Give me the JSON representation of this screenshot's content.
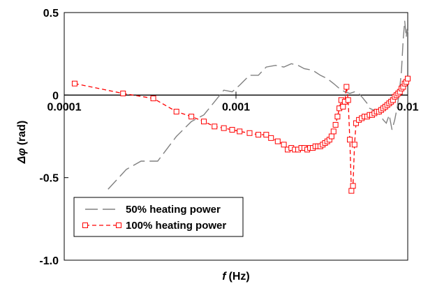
{
  "chart_data": {
    "type": "line",
    "title": "",
    "xlabel_var": "f",
    "xlabel_unit": "(Hz)",
    "ylabel_var": "Δφ",
    "ylabel_unit": "(rad)",
    "x_scale": "log",
    "xlim": [
      0.0001,
      0.01
    ],
    "ylim": [
      -1.0,
      0.5
    ],
    "x_ticks": [
      {
        "value": 0.0001,
        "label": "0.0001"
      },
      {
        "value": 0.001,
        "label": "0.001"
      },
      {
        "value": 0.01,
        "label": "0.01"
      }
    ],
    "y_ticks": [
      {
        "value": 0.5,
        "label": "0.5"
      },
      {
        "value": 0,
        "label": "0"
      },
      {
        "value": -0.5,
        "label": "-0.5"
      },
      {
        "value": -1.0,
        "label": "-1.0"
      }
    ],
    "grid": false,
    "legend_position": "bottom-left",
    "series": [
      {
        "name": "50% heating power",
        "color": "#808080",
        "line_style": "long-dash",
        "marker": "none",
        "points": [
          [
            0.00018,
            -0.57
          ],
          [
            0.00023,
            -0.45
          ],
          [
            0.00028,
            -0.4
          ],
          [
            0.00035,
            -0.4
          ],
          [
            0.00045,
            -0.25
          ],
          [
            0.00055,
            -0.16
          ],
          [
            0.00065,
            -0.12
          ],
          [
            0.00075,
            -0.04
          ],
          [
            0.00085,
            0.03
          ],
          [
            0.00095,
            0.02
          ],
          [
            0.00105,
            0.06
          ],
          [
            0.0012,
            0.12
          ],
          [
            0.00135,
            0.12
          ],
          [
            0.0015,
            0.17
          ],
          [
            0.0017,
            0.18
          ],
          [
            0.0019,
            0.17
          ],
          [
            0.0021,
            0.19
          ],
          [
            0.0023,
            0.18
          ],
          [
            0.0025,
            0.16
          ],
          [
            0.0028,
            0.15
          ],
          [
            0.0031,
            0.12
          ],
          [
            0.0034,
            0.1
          ],
          [
            0.0037,
            0.07
          ],
          [
            0.004,
            0.04
          ],
          [
            0.0043,
            0.02
          ],
          [
            0.0046,
            0.01
          ],
          [
            0.0049,
            0.02
          ],
          [
            0.0052,
            0.01
          ],
          [
            0.0055,
            -0.02
          ],
          [
            0.0058,
            -0.05
          ],
          [
            0.006,
            -0.08
          ],
          [
            0.0063,
            -0.09
          ],
          [
            0.0066,
            -0.1
          ],
          [
            0.0069,
            -0.12
          ],
          [
            0.0072,
            -0.15
          ],
          [
            0.0075,
            -0.17
          ],
          [
            0.0078,
            -0.12
          ],
          [
            0.0081,
            -0.21
          ],
          [
            0.0084,
            -0.15
          ],
          [
            0.0087,
            -0.07
          ],
          [
            0.009,
            0.05
          ],
          [
            0.0092,
            0.15
          ],
          [
            0.0094,
            0.33
          ],
          [
            0.0096,
            0.45
          ],
          [
            0.0098,
            0.35
          ],
          [
            0.0099,
            0.4
          ],
          [
            0.01,
            0.38
          ]
        ]
      },
      {
        "name": "100% heating power",
        "color": "#ff0000",
        "line_style": "dashed",
        "marker": "open-square",
        "points": [
          [
            0.000115,
            0.07
          ],
          [
            0.00022,
            0.01
          ],
          [
            0.00033,
            -0.02
          ],
          [
            0.00045,
            -0.1
          ],
          [
            0.00055,
            -0.13
          ],
          [
            0.00065,
            -0.16
          ],
          [
            0.00075,
            -0.19
          ],
          [
            0.00085,
            -0.2
          ],
          [
            0.00095,
            -0.21
          ],
          [
            0.00105,
            -0.22
          ],
          [
            0.0012,
            -0.23
          ],
          [
            0.00135,
            -0.24
          ],
          [
            0.0015,
            -0.24
          ],
          [
            0.0016,
            -0.26
          ],
          [
            0.00175,
            -0.28
          ],
          [
            0.0019,
            -0.3
          ],
          [
            0.002,
            -0.33
          ],
          [
            0.0021,
            -0.32
          ],
          [
            0.0022,
            -0.33
          ],
          [
            0.0023,
            -0.33
          ],
          [
            0.0024,
            -0.32
          ],
          [
            0.0025,
            -0.32
          ],
          [
            0.0026,
            -0.33
          ],
          [
            0.0027,
            -0.32
          ],
          [
            0.0028,
            -0.32
          ],
          [
            0.0029,
            -0.31
          ],
          [
            0.003,
            -0.31
          ],
          [
            0.0031,
            -0.31
          ],
          [
            0.0032,
            -0.3
          ],
          [
            0.0033,
            -0.29
          ],
          [
            0.0034,
            -0.28
          ],
          [
            0.0035,
            -0.27
          ],
          [
            0.0036,
            -0.25
          ],
          [
            0.0037,
            -0.22
          ],
          [
            0.0038,
            -0.18
          ],
          [
            0.0039,
            -0.13
          ],
          [
            0.004,
            -0.08
          ],
          [
            0.0041,
            -0.03
          ],
          [
            0.0042,
            -0.07
          ],
          [
            0.0043,
            -0.04
          ],
          [
            0.0044,
            0.05
          ],
          [
            0.0045,
            -0.03
          ],
          [
            0.0046,
            -0.27
          ],
          [
            0.0047,
            -0.58
          ],
          [
            0.0048,
            -0.55
          ],
          [
            0.0049,
            -0.3
          ],
          [
            0.005,
            -0.17
          ],
          [
            0.0052,
            -0.15
          ],
          [
            0.0054,
            -0.14
          ],
          [
            0.0056,
            -0.13
          ],
          [
            0.0058,
            -0.13
          ],
          [
            0.006,
            -0.12
          ],
          [
            0.0062,
            -0.12
          ],
          [
            0.0064,
            -0.11
          ],
          [
            0.0066,
            -0.1
          ],
          [
            0.0068,
            -0.1
          ],
          [
            0.007,
            -0.09
          ],
          [
            0.0072,
            -0.08
          ],
          [
            0.0074,
            -0.07
          ],
          [
            0.0076,
            -0.06
          ],
          [
            0.0078,
            -0.05
          ],
          [
            0.008,
            -0.04
          ],
          [
            0.0082,
            -0.03
          ],
          [
            0.0084,
            -0.01
          ],
          [
            0.0086,
            0.0
          ],
          [
            0.0088,
            0.01
          ],
          [
            0.009,
            0.02
          ],
          [
            0.0092,
            0.04
          ],
          [
            0.0094,
            0.05
          ],
          [
            0.0096,
            0.07
          ],
          [
            0.0098,
            0.08
          ],
          [
            0.01,
            0.1
          ]
        ]
      }
    ]
  }
}
